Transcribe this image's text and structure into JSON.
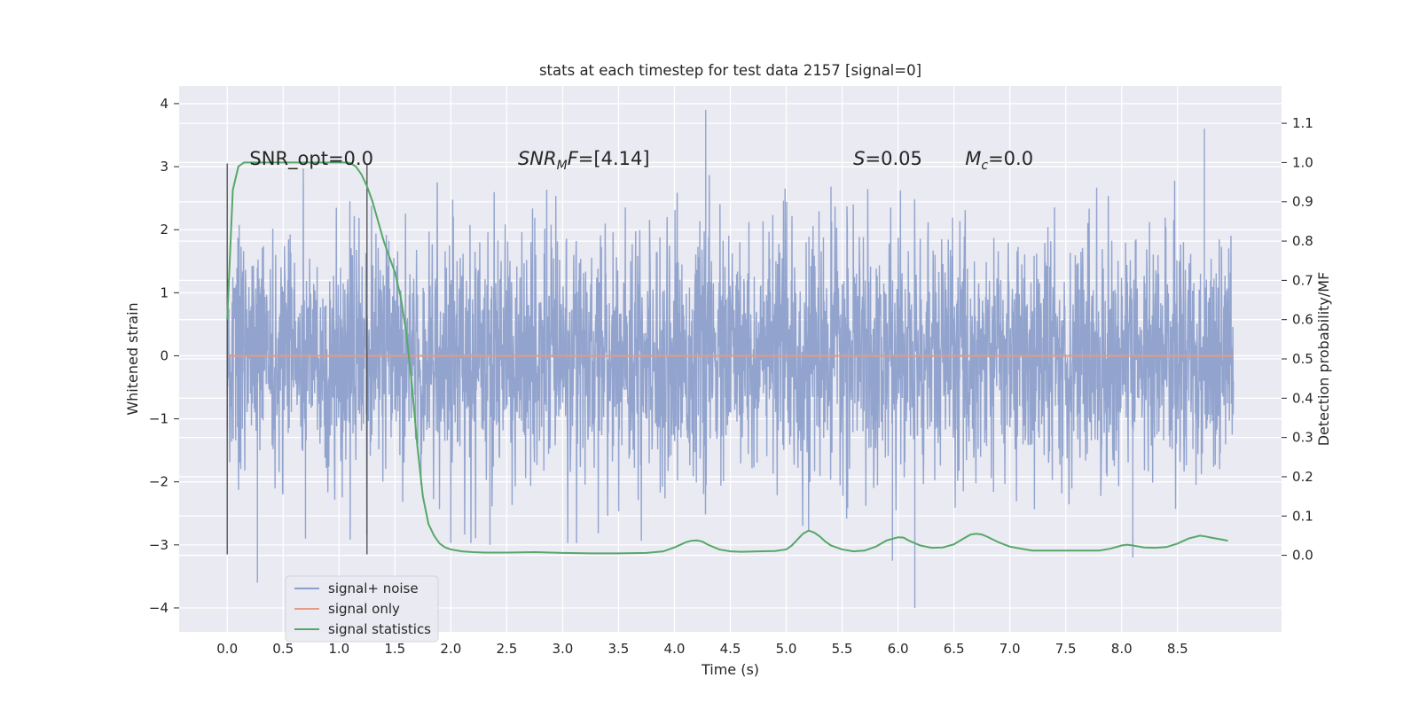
{
  "chart_data": {
    "type": "line",
    "title": "stats at each timestep for test data 2157 [signal=0]",
    "xlabel": "Time (s)",
    "ylabel": "Whitened strain",
    "y2label": "Detection probability/MF",
    "xlim": [
      -0.43,
      9.43
    ],
    "ylim": [
      -4.38,
      4.28
    ],
    "y2lim": [
      -0.195,
      1.195
    ],
    "x_ticks": [
      "0.0",
      "0.5",
      "1.0",
      "1.5",
      "2.0",
      "2.5",
      "3.0",
      "3.5",
      "4.0",
      "4.5",
      "5.0",
      "5.5",
      "6.0",
      "6.5",
      "7.0",
      "7.5",
      "8.0",
      "8.5"
    ],
    "y_ticks": [
      "4",
      "3",
      "2",
      "1",
      "0",
      "−1",
      "−2",
      "−3",
      "−4"
    ],
    "y2_ticks": [
      "1.1",
      "1.0",
      "0.9",
      "0.8",
      "0.7",
      "0.6",
      "0.5",
      "0.4",
      "0.3",
      "0.2",
      "0.1",
      "0.0"
    ],
    "grid": true,
    "legend_position": "lower-left",
    "noise": {
      "x_range": [
        0.0,
        9.0
      ],
      "band": [
        -1.2,
        1.2
      ],
      "typical_extent": 2.2,
      "peak_max": 3.9,
      "peak_min": -4.0
    },
    "vlines": [
      {
        "x": 0.0,
        "y_range": [
          -3.15,
          3.05
        ]
      },
      {
        "x": 1.25,
        "y_range": [
          -3.15,
          3.05
        ]
      }
    ],
    "series": [
      {
        "name": "signal+ noise",
        "color": "#8da0cb",
        "kind": "noise"
      },
      {
        "name": "signal only",
        "color": "#e39c86",
        "kind": "line",
        "x": [
          0.0,
          9.0
        ],
        "y": [
          0.0,
          0.0
        ]
      },
      {
        "name": "signal statistics",
        "color": "#55a868",
        "kind": "line",
        "axis": "right",
        "x": [
          0.0,
          0.05,
          0.1,
          0.15,
          0.2,
          0.3,
          0.4,
          0.5,
          0.6,
          0.7,
          0.8,
          0.9,
          1.0,
          1.05,
          1.1,
          1.15,
          1.2,
          1.25,
          1.3,
          1.35,
          1.4,
          1.45,
          1.5,
          1.55,
          1.6,
          1.65,
          1.7,
          1.75,
          1.8,
          1.85,
          1.9,
          1.95,
          2.0,
          2.1,
          2.2,
          2.3,
          2.5,
          2.75,
          3.0,
          3.25,
          3.5,
          3.75,
          3.9,
          4.0,
          4.1,
          4.15,
          4.2,
          4.25,
          4.3,
          4.4,
          4.5,
          4.6,
          4.75,
          4.9,
          5.0,
          5.05,
          5.1,
          5.15,
          5.2,
          5.25,
          5.3,
          5.35,
          5.4,
          5.5,
          5.6,
          5.7,
          5.8,
          5.9,
          6.0,
          6.05,
          6.1,
          6.2,
          6.3,
          6.4,
          6.5,
          6.6,
          6.65,
          6.7,
          6.75,
          6.8,
          6.9,
          7.0,
          7.2,
          7.4,
          7.6,
          7.8,
          7.9,
          8.0,
          8.05,
          8.1,
          8.2,
          8.3,
          8.4,
          8.5,
          8.6,
          8.7,
          8.75,
          8.8,
          8.9,
          8.95
        ],
        "y": [
          0.6,
          0.93,
          0.99,
          1.0,
          1.0,
          1.0,
          1.0,
          1.0,
          1.0,
          1.0,
          1.0,
          1.0,
          1.0,
          1.0,
          0.999,
          0.99,
          0.97,
          0.94,
          0.9,
          0.85,
          0.8,
          0.76,
          0.72,
          0.66,
          0.57,
          0.44,
          0.28,
          0.15,
          0.08,
          0.05,
          0.03,
          0.02,
          0.015,
          0.01,
          0.008,
          0.007,
          0.007,
          0.008,
          0.006,
          0.005,
          0.005,
          0.006,
          0.01,
          0.02,
          0.033,
          0.037,
          0.038,
          0.035,
          0.027,
          0.015,
          0.01,
          0.009,
          0.01,
          0.011,
          0.015,
          0.025,
          0.04,
          0.055,
          0.063,
          0.058,
          0.048,
          0.035,
          0.025,
          0.015,
          0.01,
          0.012,
          0.022,
          0.038,
          0.046,
          0.045,
          0.037,
          0.025,
          0.019,
          0.02,
          0.028,
          0.045,
          0.053,
          0.055,
          0.053,
          0.047,
          0.033,
          0.022,
          0.012,
          0.012,
          0.012,
          0.012,
          0.017,
          0.025,
          0.027,
          0.025,
          0.02,
          0.019,
          0.021,
          0.03,
          0.043,
          0.05,
          0.048,
          0.045,
          0.04,
          0.037
        ]
      }
    ],
    "annotations": [
      {
        "x": 0.2,
        "y": 3.0,
        "text": "SNR_opt=0.0"
      },
      {
        "x": 2.6,
        "y": 3.0,
        "italic": "SNR",
        "sub": "M",
        "italic_tail": "F",
        "tail": "=[4.14]"
      },
      {
        "x": 5.6,
        "y": 3.0,
        "italic": "S",
        "tail": "=0.05"
      },
      {
        "x": 6.6,
        "y": 3.0,
        "italic": "M",
        "sub": "c",
        "tail": "=0.0"
      }
    ]
  }
}
